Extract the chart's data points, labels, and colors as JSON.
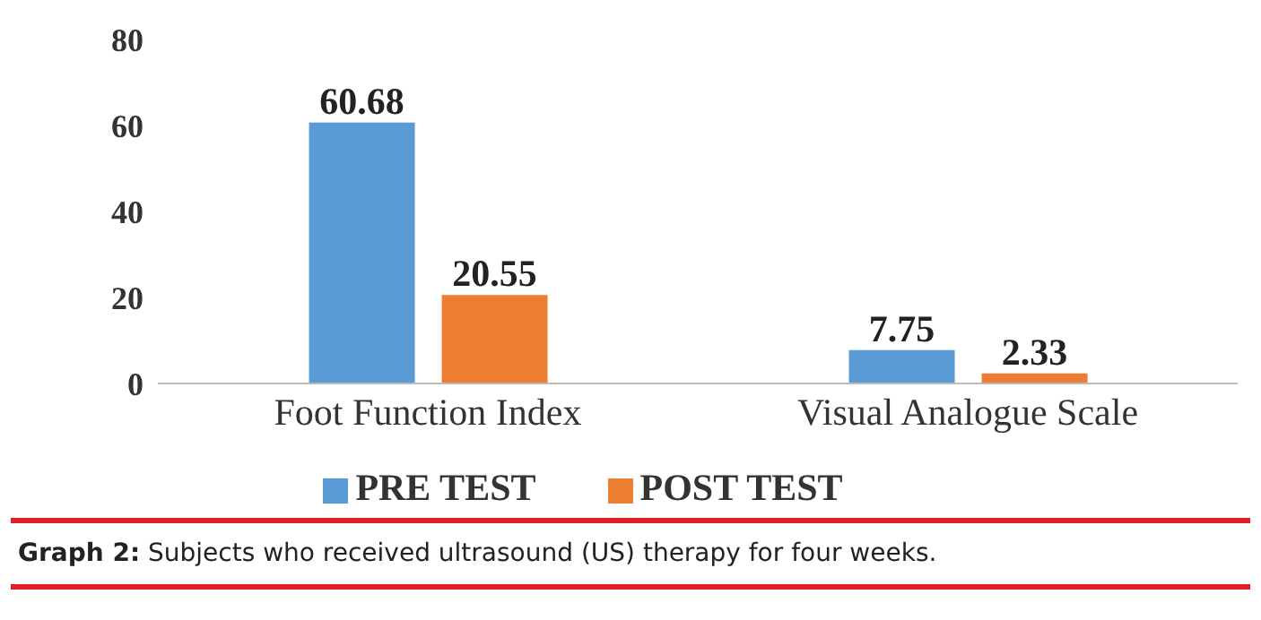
{
  "chart_data": {
    "type": "bar",
    "categories": [
      "Foot Function Index",
      "Visual Analogue Scale"
    ],
    "series": [
      {
        "name": "PRE TEST",
        "color": "#5b9bd5",
        "values": [
          60.68,
          7.75
        ]
      },
      {
        "name": "POST TEST",
        "color": "#ed7d31",
        "values": [
          20.55,
          2.33
        ]
      }
    ],
    "ylim": [
      0,
      80
    ],
    "yticks": [
      0,
      20,
      40,
      60,
      80
    ],
    "grid": false,
    "legend": "bottom",
    "data_labels": true,
    "annotations": [
      "Graph 2: Subjects who received ultrasound (US) therapy for four weeks."
    ]
  }
}
